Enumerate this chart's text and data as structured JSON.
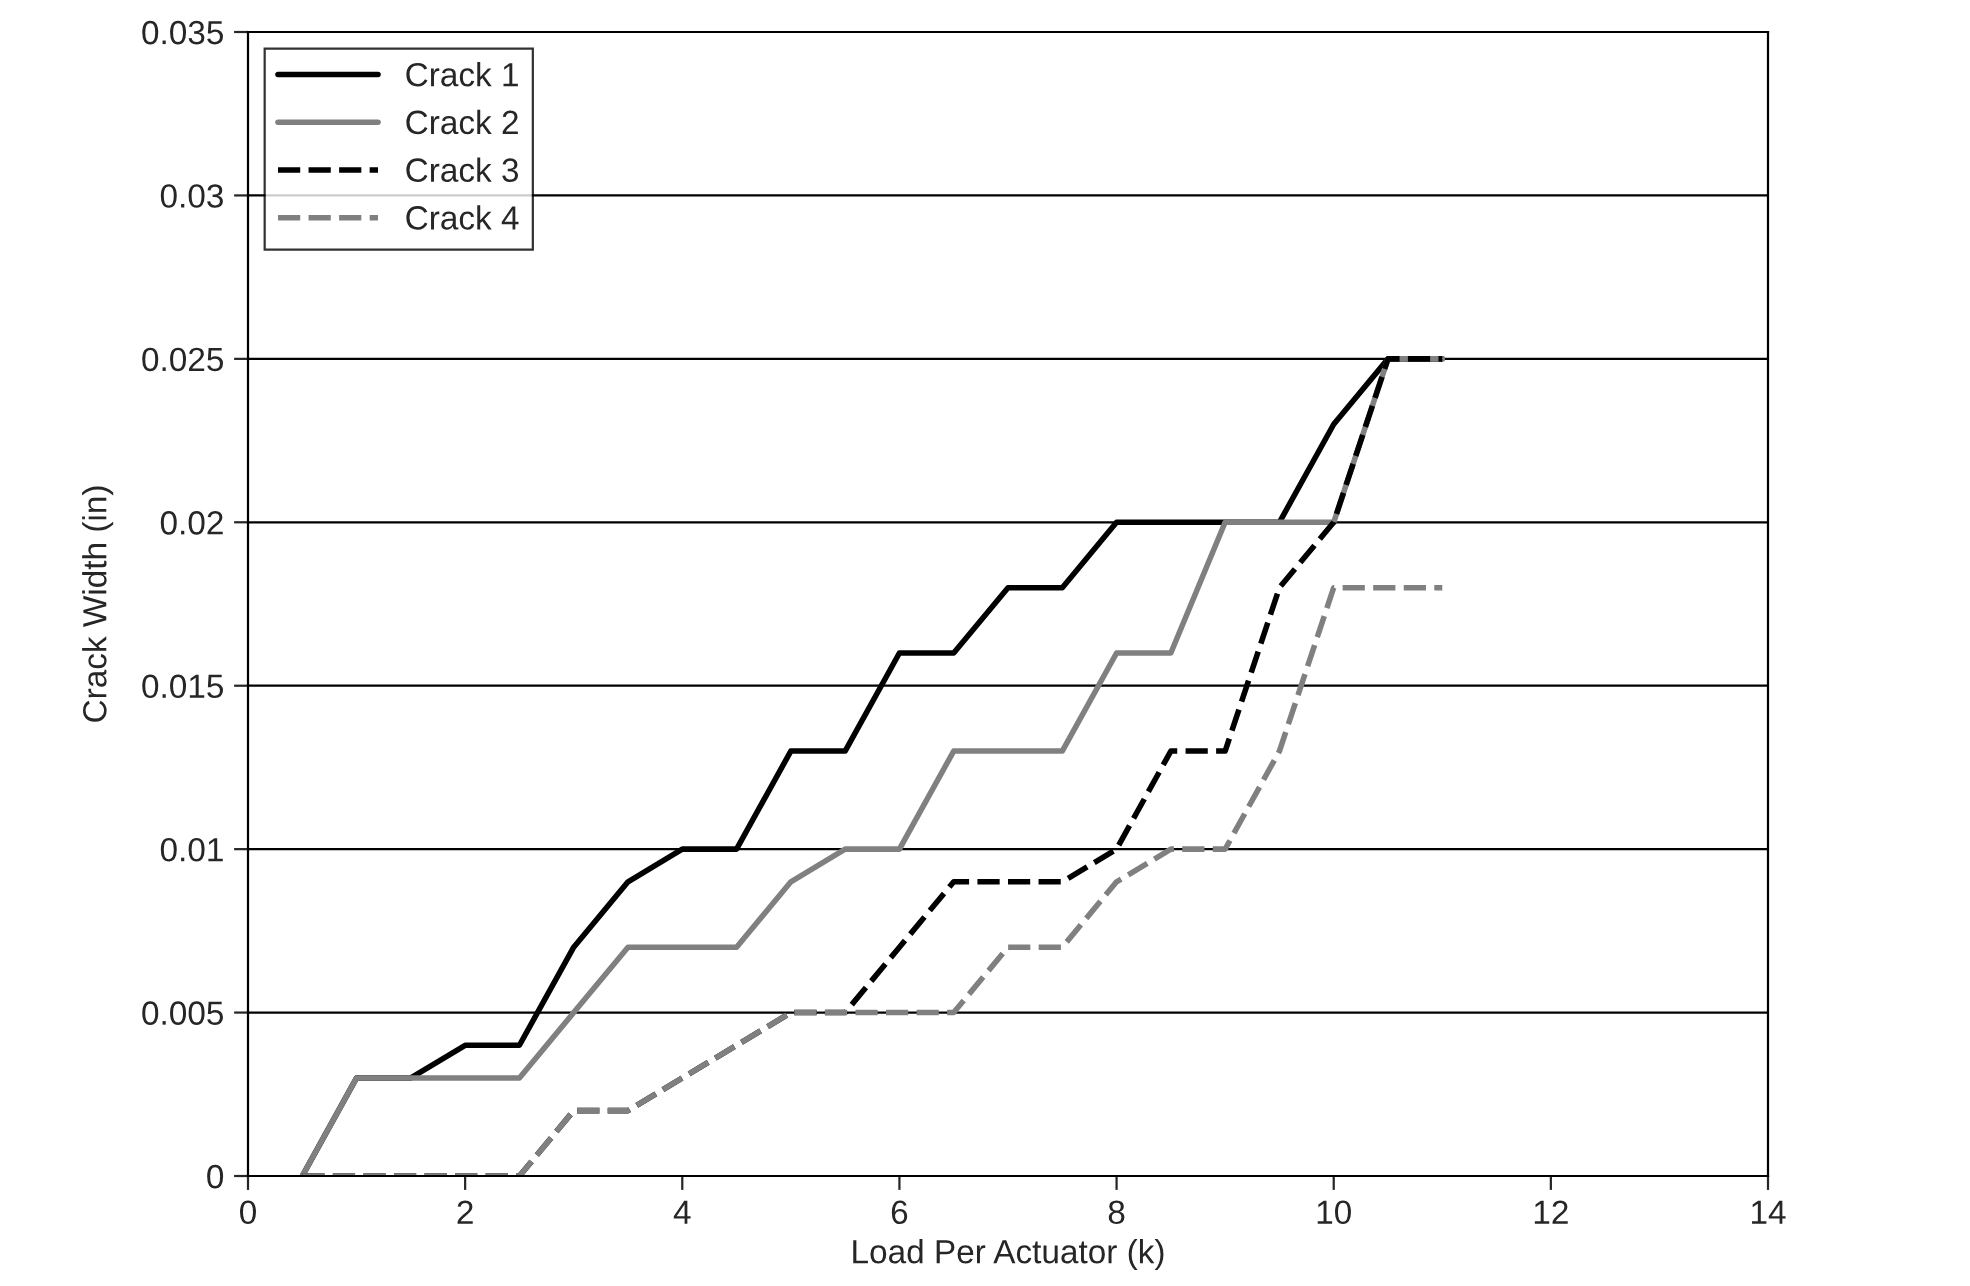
{
  "chart_data": {
    "type": "line",
    "xlabel": "Load Per Actuator (k)",
    "ylabel": "Crack Width (in)",
    "x": [
      0.5,
      1,
      1.5,
      2,
      2.5,
      3,
      3.5,
      4,
      4.5,
      5,
      5.5,
      6,
      6.5,
      7,
      7.5,
      8,
      8.5,
      9,
      9.5,
      10,
      10.5,
      11
    ],
    "series": [
      {
        "name": "Crack 1",
        "color": "#000000",
        "line_style": "solid",
        "values": [
          0,
          0.003,
          0.003,
          0.004,
          0.004,
          0.007,
          0.009,
          0.01,
          0.01,
          0.013,
          0.013,
          0.016,
          0.016,
          0.018,
          0.018,
          0.02,
          0.02,
          0.02,
          0.02,
          0.023,
          0.025,
          0.025
        ]
      },
      {
        "name": "Crack 2",
        "color": "#808080",
        "line_style": "solid",
        "values": [
          0,
          0.003,
          0.003,
          0.003,
          0.003,
          0.005,
          0.007,
          0.007,
          0.007,
          0.009,
          0.01,
          0.01,
          0.013,
          0.013,
          0.013,
          0.016,
          0.016,
          0.02,
          0.02,
          0.02,
          0.025,
          0.025
        ]
      },
      {
        "name": "Crack 3",
        "color": "#000000",
        "line_style": "dashed",
        "values": [
          0,
          0,
          0,
          0,
          0,
          0.002,
          0.002,
          0.003,
          0.004,
          0.005,
          0.005,
          0.007,
          0.009,
          0.009,
          0.009,
          0.01,
          0.013,
          0.013,
          0.018,
          0.02,
          0.025,
          0.025
        ]
      },
      {
        "name": "Crack 4",
        "color": "#808080",
        "line_style": "dashed",
        "values": [
          0,
          0,
          0,
          0,
          0,
          0.002,
          0.002,
          0.003,
          0.004,
          0.005,
          0.005,
          0.005,
          0.005,
          0.007,
          0.007,
          0.009,
          0.01,
          0.01,
          0.013,
          0.018,
          0.018,
          0.018
        ]
      }
    ],
    "xlim": [
      0,
      14
    ],
    "xticks": [
      0,
      2,
      4,
      6,
      8,
      10,
      12,
      14
    ],
    "ylim": [
      0,
      0.035
    ],
    "yticks": [
      0,
      0.005,
      0.01,
      0.015,
      0.02,
      0.025,
      0.03,
      0.035
    ],
    "grid": "y",
    "legend": "top left",
    "marker": "none"
  }
}
